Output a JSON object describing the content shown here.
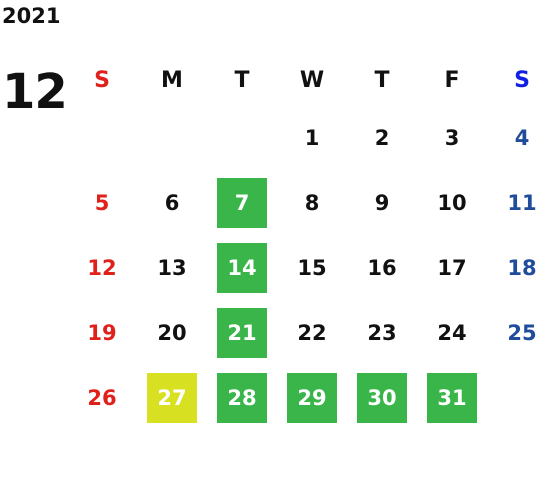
{
  "calendar": {
    "year": "2021",
    "month": "12",
    "colors": {
      "sunday": "#e0201b",
      "saturday": "#1f4c9b",
      "saturday_header": "#1020e0",
      "highlight_green": "#39b54a",
      "highlight_yellow": "#d7e021",
      "text": "#111111"
    },
    "weekdays": [
      "S",
      "M",
      "T",
      "W",
      "T",
      "F",
      "S"
    ],
    "weeks": [
      [
        {
          "d": ""
        },
        {
          "d": ""
        },
        {
          "d": ""
        },
        {
          "d": "1"
        },
        {
          "d": "2"
        },
        {
          "d": "3"
        },
        {
          "d": "4"
        }
      ],
      [
        {
          "d": "5"
        },
        {
          "d": "6"
        },
        {
          "d": "7",
          "hl": "green"
        },
        {
          "d": "8"
        },
        {
          "d": "9"
        },
        {
          "d": "10"
        },
        {
          "d": "11"
        }
      ],
      [
        {
          "d": "12"
        },
        {
          "d": "13"
        },
        {
          "d": "14",
          "hl": "green"
        },
        {
          "d": "15"
        },
        {
          "d": "16"
        },
        {
          "d": "17"
        },
        {
          "d": "18"
        }
      ],
      [
        {
          "d": "19"
        },
        {
          "d": "20"
        },
        {
          "d": "21",
          "hl": "green"
        },
        {
          "d": "22"
        },
        {
          "d": "23"
        },
        {
          "d": "24"
        },
        {
          "d": "25"
        }
      ],
      [
        {
          "d": "26"
        },
        {
          "d": "27",
          "hl": "yellow"
        },
        {
          "d": "28",
          "hl": "green"
        },
        {
          "d": "29",
          "hl": "green"
        },
        {
          "d": "30",
          "hl": "green"
        },
        {
          "d": "31",
          "hl": "green"
        },
        {
          "d": ""
        }
      ]
    ]
  }
}
